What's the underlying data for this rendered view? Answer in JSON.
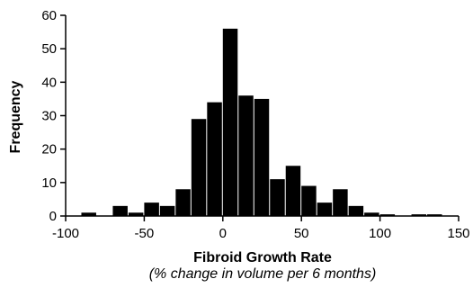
{
  "chart_data": {
    "type": "bar",
    "xlabel": "Fibroid Growth Rate",
    "xlabel_sub": "(% change in volume per 6 months)",
    "ylabel": "Frequency",
    "xlim": [
      -100,
      150
    ],
    "ylim": [
      0,
      60
    ],
    "bin_width": 10,
    "x_ticks": [
      -100,
      -50,
      0,
      50,
      100,
      150
    ],
    "y_ticks": [
      0,
      10,
      20,
      30,
      40,
      50,
      60
    ],
    "x_tick_labels": [
      "-100",
      "-50",
      "0",
      "50",
      "100",
      "150"
    ],
    "y_tick_labels": [
      "0",
      "10",
      "20",
      "30",
      "40",
      "50",
      "60"
    ],
    "bars": [
      {
        "x0": -90,
        "x1": -80,
        "value": 1
      },
      {
        "x0": -70,
        "x1": -60,
        "value": 3
      },
      {
        "x0": -60,
        "x1": -50,
        "value": 1
      },
      {
        "x0": -50,
        "x1": -40,
        "value": 4
      },
      {
        "x0": -40,
        "x1": -30,
        "value": 3
      },
      {
        "x0": -30,
        "x1": -20,
        "value": 8
      },
      {
        "x0": -20,
        "x1": -10,
        "value": 29
      },
      {
        "x0": -10,
        "x1": 0,
        "value": 34
      },
      {
        "x0": 0,
        "x1": 10,
        "value": 56
      },
      {
        "x0": 10,
        "x1": 20,
        "value": 36
      },
      {
        "x0": 20,
        "x1": 30,
        "value": 35
      },
      {
        "x0": 30,
        "x1": 40,
        "value": 11
      },
      {
        "x0": 40,
        "x1": 50,
        "value": 15
      },
      {
        "x0": 50,
        "x1": 60,
        "value": 9
      },
      {
        "x0": 60,
        "x1": 70,
        "value": 4
      },
      {
        "x0": 70,
        "x1": 80,
        "value": 8
      },
      {
        "x0": 80,
        "x1": 90,
        "value": 3
      },
      {
        "x0": 90,
        "x1": 100,
        "value": 1
      },
      {
        "x0": 100,
        "x1": 110,
        "value": 0.5
      },
      {
        "x0": 120,
        "x1": 130,
        "value": 0.5
      },
      {
        "x0": 130,
        "x1": 140,
        "value": 0.5
      }
    ],
    "bar_color": "#000000",
    "grid": false,
    "legend": "none"
  }
}
